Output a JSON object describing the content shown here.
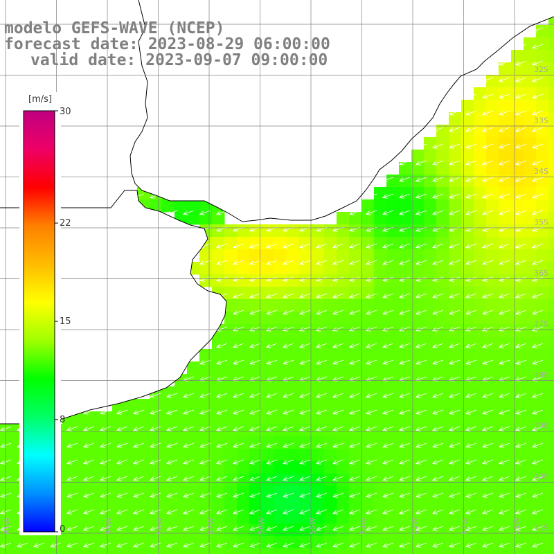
{
  "header": {
    "model_line": "modelo GEFS-WAVE (NCEP)",
    "forecast_line": "forecast date: 2023-08-29 06:00:00",
    "valid_line": "valid date: 2023-09-07 09:00:00"
  },
  "colorbar": {
    "unit": "[m/s]",
    "tick_labels": [
      "30",
      "22",
      "15",
      "8",
      "0"
    ],
    "tick_values": [
      30,
      22,
      15,
      8,
      0
    ],
    "range": [
      0,
      30
    ],
    "colors": [
      "#0000ff",
      "#0090ff",
      "#00ffff",
      "#00ff66",
      "#00ff00",
      "#a0ff00",
      "#ffff00",
      "#ffbb00",
      "#ff8000",
      "#ff0000",
      "#ee0066",
      "#c00080"
    ]
  },
  "map": {
    "lat_labels": [
      "32S",
      "33S",
      "34S",
      "35S",
      "36S",
      "37S",
      "38S",
      "39S",
      "40S",
      "41S"
    ],
    "lon_labels": [
      "61W",
      "60W",
      "59W",
      "58W",
      "57W",
      "56W",
      "55W",
      "54W",
      "53W",
      "52W",
      "51W"
    ],
    "wind_direction": "from northeast",
    "grid_color": "#808080",
    "coastline_color": "#000000",
    "land_color": "#ffffff",
    "arrow_color": "#ffffff"
  }
}
